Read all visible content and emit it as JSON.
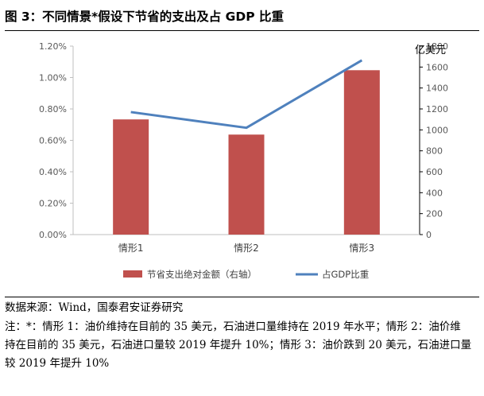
{
  "figure": {
    "title": "图 3：不同情景*假设下节省的支出及占 GDP 比重"
  },
  "chart_data": {
    "type": "bar",
    "categories": [
      "情形1",
      "情形2",
      "情形3"
    ],
    "series": [
      {
        "name": "节省支出绝对金额（右轴）",
        "kind": "bar",
        "axis": "right",
        "color": "#c0504d",
        "values": [
          1100,
          955,
          1570
        ]
      },
      {
        "name": "占GDP比重",
        "kind": "line",
        "axis": "left",
        "color": "#4f81bd",
        "values": [
          0.0078,
          0.0068,
          0.0111
        ]
      }
    ],
    "y_left": {
      "range": [
        0,
        0.012
      ],
      "ticks": [
        0,
        0.002,
        0.004,
        0.006,
        0.008,
        0.01,
        0.012
      ],
      "tick_labels": [
        "0.00%",
        "0.20%",
        "0.40%",
        "0.60%",
        "0.80%",
        "1.00%",
        "1.20%"
      ]
    },
    "y_right": {
      "range": [
        0,
        1800
      ],
      "ticks": [
        0,
        200,
        400,
        600,
        800,
        1000,
        1200,
        1400,
        1600,
        1800
      ],
      "tick_labels": [
        "0",
        "200",
        "400",
        "600",
        "800",
        "1000",
        "1200",
        "1400",
        "1600",
        "1800"
      ],
      "label": "亿美元"
    },
    "grid": false,
    "legend_position": "bottom"
  },
  "footer": {
    "source": "数据来源：Wind，国泰君安证券研究",
    "note_lines": [
      "注：*：情形 1：油价维持在目前的 35 美元，石油进口量维持在 2019 年水平；情形 2：油价维",
      "持在目前的 35 美元，石油进口量较 2019 年提升 10%；情形 3：油价跌到 20 美元，石油进口量",
      "较 2019 年提升 10%"
    ]
  }
}
